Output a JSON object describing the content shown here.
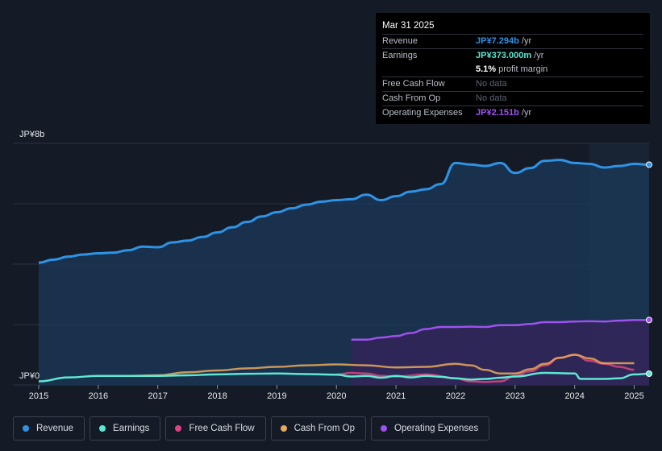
{
  "tooltip": {
    "date": "Mar 31 2025",
    "revenue_label": "Revenue",
    "revenue_value": "JP¥7.294b",
    "revenue_unit": " /yr",
    "earnings_label": "Earnings",
    "earnings_value": "JP¥373.000m",
    "earnings_unit": " /yr",
    "margin_value": "5.1%",
    "margin_text": " profit margin",
    "fcf_label": "Free Cash Flow",
    "fcf_value": "No data",
    "cfo_label": "Cash From Op",
    "cfo_value": "No data",
    "opex_label": "Operating Expenses",
    "opex_value": "JP¥2.151b",
    "opex_unit": " /yr"
  },
  "legend": [
    {
      "label": "Revenue",
      "color": "#2e93e6"
    },
    {
      "label": "Earnings",
      "color": "#5ee8d3"
    },
    {
      "label": "Free Cash Flow",
      "color": "#d9467f"
    },
    {
      "label": "Cash From Op",
      "color": "#e8a95c"
    },
    {
      "label": "Operating Expenses",
      "color": "#9f50f0"
    }
  ],
  "chart_data": {
    "type": "area",
    "title": "",
    "xlabel": "",
    "ylabel": "",
    "ylim": [
      0,
      8
    ],
    "xlim": [
      2015,
      2025.25
    ],
    "y_tick_labels": {
      "top": "JP¥8b",
      "bottom": "JP¥0"
    },
    "x_ticks": [
      2015,
      2016,
      2017,
      2018,
      2019,
      2020,
      2021,
      2022,
      2023,
      2024,
      2025
    ],
    "forecast_start": 2024.25,
    "series": [
      {
        "name": "Revenue",
        "color": "#2e93e6",
        "fill": "#1b3a5a",
        "points": [
          [
            2015,
            4.05
          ],
          [
            2015.25,
            4.15
          ],
          [
            2015.5,
            4.25
          ],
          [
            2015.75,
            4.32
          ],
          [
            2016,
            4.36
          ],
          [
            2016.25,
            4.38
          ],
          [
            2016.5,
            4.46
          ],
          [
            2016.75,
            4.58
          ],
          [
            2017,
            4.56
          ],
          [
            2017.25,
            4.72
          ],
          [
            2017.5,
            4.78
          ],
          [
            2017.75,
            4.9
          ],
          [
            2018,
            5.05
          ],
          [
            2018.25,
            5.22
          ],
          [
            2018.5,
            5.4
          ],
          [
            2018.75,
            5.58
          ],
          [
            2019,
            5.72
          ],
          [
            2019.25,
            5.85
          ],
          [
            2019.5,
            5.97
          ],
          [
            2019.75,
            6.07
          ],
          [
            2020,
            6.12
          ],
          [
            2020.25,
            6.15
          ],
          [
            2020.5,
            6.3
          ],
          [
            2020.75,
            6.12
          ],
          [
            2021,
            6.25
          ],
          [
            2021.25,
            6.4
          ],
          [
            2021.5,
            6.48
          ],
          [
            2021.75,
            6.65
          ],
          [
            2022,
            7.35
          ],
          [
            2022.25,
            7.3
          ],
          [
            2022.5,
            7.25
          ],
          [
            2022.75,
            7.35
          ],
          [
            2023,
            7.02
          ],
          [
            2023.25,
            7.18
          ],
          [
            2023.5,
            7.42
          ],
          [
            2023.75,
            7.45
          ],
          [
            2024,
            7.35
          ],
          [
            2024.25,
            7.32
          ],
          [
            2024.5,
            7.2
          ],
          [
            2024.75,
            7.25
          ],
          [
            2025,
            7.32
          ],
          [
            2025.25,
            7.294
          ]
        ]
      },
      {
        "name": "Earnings",
        "color": "#5ee8d3",
        "points": [
          [
            2015,
            0.12
          ],
          [
            2015.5,
            0.25
          ],
          [
            2016,
            0.3
          ],
          [
            2016.5,
            0.3
          ],
          [
            2017,
            0.3
          ],
          [
            2017.5,
            0.32
          ],
          [
            2018,
            0.35
          ],
          [
            2018.5,
            0.37
          ],
          [
            2019,
            0.38
          ],
          [
            2019.5,
            0.36
          ],
          [
            2020,
            0.34
          ],
          [
            2020.25,
            0.28
          ],
          [
            2020.5,
            0.3
          ],
          [
            2020.75,
            0.24
          ],
          [
            2021,
            0.3
          ],
          [
            2021.25,
            0.25
          ],
          [
            2021.5,
            0.3
          ],
          [
            2021.75,
            0.27
          ],
          [
            2022,
            0.22
          ],
          [
            2022.25,
            0.18
          ],
          [
            2022.5,
            0.2
          ],
          [
            2022.75,
            0.24
          ],
          [
            2023,
            0.28
          ],
          [
            2023.5,
            0.4
          ],
          [
            2024,
            0.38
          ],
          [
            2024.1,
            0.2
          ],
          [
            2024.5,
            0.2
          ],
          [
            2024.75,
            0.22
          ],
          [
            2025,
            0.35
          ],
          [
            2025.25,
            0.373
          ]
        ]
      },
      {
        "name": "Free Cash Flow",
        "color": "#d9467f",
        "points": [
          [
            2020,
            0.35
          ],
          [
            2020.25,
            0.4
          ],
          [
            2020.5,
            0.38
          ],
          [
            2020.75,
            0.3
          ],
          [
            2021,
            0.28
          ],
          [
            2021.5,
            0.35
          ],
          [
            2022,
            0.22
          ],
          [
            2022.25,
            0.12
          ],
          [
            2022.5,
            0.1
          ],
          [
            2022.75,
            0.12
          ],
          [
            2023,
            0.3
          ],
          [
            2023.25,
            0.45
          ],
          [
            2023.5,
            0.65
          ],
          [
            2023.75,
            0.9
          ],
          [
            2024,
            1.0
          ],
          [
            2024.25,
            0.8
          ],
          [
            2024.5,
            0.7
          ],
          [
            2024.75,
            0.6
          ],
          [
            2025,
            0.5
          ]
        ]
      },
      {
        "name": "Cash From Op",
        "color": "#e8a95c",
        "points": [
          [
            2016,
            0.3
          ],
          [
            2016.5,
            0.3
          ],
          [
            2017,
            0.32
          ],
          [
            2017.5,
            0.42
          ],
          [
            2018,
            0.48
          ],
          [
            2018.5,
            0.55
          ],
          [
            2019,
            0.6
          ],
          [
            2019.5,
            0.65
          ],
          [
            2020,
            0.68
          ],
          [
            2020.5,
            0.65
          ],
          [
            2021,
            0.58
          ],
          [
            2021.5,
            0.6
          ],
          [
            2022,
            0.7
          ],
          [
            2022.25,
            0.65
          ],
          [
            2022.5,
            0.5
          ],
          [
            2022.75,
            0.38
          ],
          [
            2023,
            0.38
          ],
          [
            2023.25,
            0.52
          ],
          [
            2023.5,
            0.7
          ],
          [
            2023.75,
            0.9
          ],
          [
            2024,
            1.0
          ],
          [
            2024.25,
            0.88
          ],
          [
            2024.5,
            0.72
          ],
          [
            2024.75,
            0.72
          ],
          [
            2025,
            0.72
          ]
        ]
      },
      {
        "name": "Operating Expenses",
        "color": "#9f50f0",
        "fill": "#35235a",
        "points": [
          [
            2020.25,
            1.5
          ],
          [
            2020.5,
            1.5
          ],
          [
            2020.75,
            1.57
          ],
          [
            2021,
            1.62
          ],
          [
            2021.25,
            1.72
          ],
          [
            2021.5,
            1.85
          ],
          [
            2021.75,
            1.92
          ],
          [
            2022,
            1.92
          ],
          [
            2022.25,
            1.93
          ],
          [
            2022.5,
            1.92
          ],
          [
            2022.75,
            1.98
          ],
          [
            2023,
            1.98
          ],
          [
            2023.25,
            2.02
          ],
          [
            2023.5,
            2.08
          ],
          [
            2023.75,
            2.08
          ],
          [
            2024,
            2.1
          ],
          [
            2024.25,
            2.11
          ],
          [
            2024.5,
            2.1
          ],
          [
            2024.75,
            2.13
          ],
          [
            2025,
            2.15
          ],
          [
            2025.25,
            2.151
          ]
        ]
      }
    ]
  }
}
